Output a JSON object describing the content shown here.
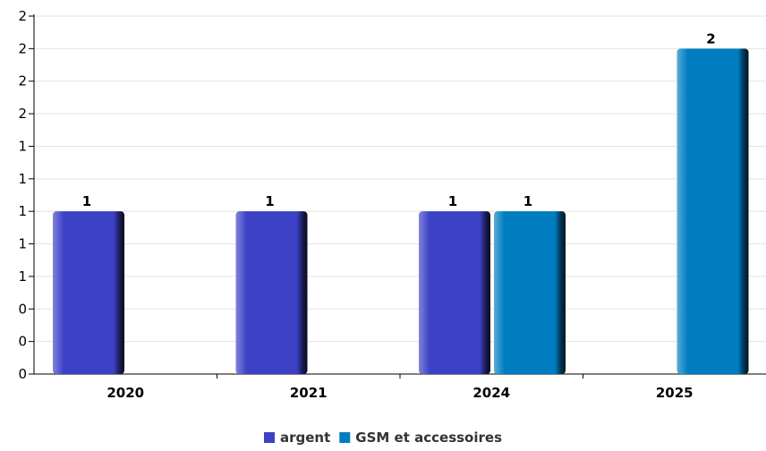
{
  "chart_data": {
    "type": "bar",
    "title": "",
    "xlabel": "",
    "ylabel": "",
    "categories": [
      "2020",
      "2021",
      "2024",
      "2025"
    ],
    "series": [
      {
        "name": "argent",
        "color": "#3d41c6",
        "values": [
          1,
          1,
          1,
          null
        ]
      },
      {
        "name": "GSM et accessoires",
        "color": "#007dc0",
        "values": [
          null,
          null,
          1,
          2
        ]
      }
    ],
    "ylim": [
      0,
      2.2
    ],
    "y_ticks": [
      {
        "value": 0,
        "label": "0"
      },
      {
        "value": 0.2,
        "label": "0"
      },
      {
        "value": 0.4,
        "label": "0"
      },
      {
        "value": 0.6,
        "label": "1"
      },
      {
        "value": 0.8,
        "label": "1"
      },
      {
        "value": 1.0,
        "label": "1"
      },
      {
        "value": 1.2,
        "label": "1"
      },
      {
        "value": 1.4,
        "label": "1"
      },
      {
        "value": 1.6,
        "label": "2"
      },
      {
        "value": 1.8,
        "label": "2"
      },
      {
        "value": 2.0,
        "label": "2"
      },
      {
        "value": 2.2,
        "label": "2"
      }
    ],
    "grid": true,
    "legend_position": "bottom"
  }
}
